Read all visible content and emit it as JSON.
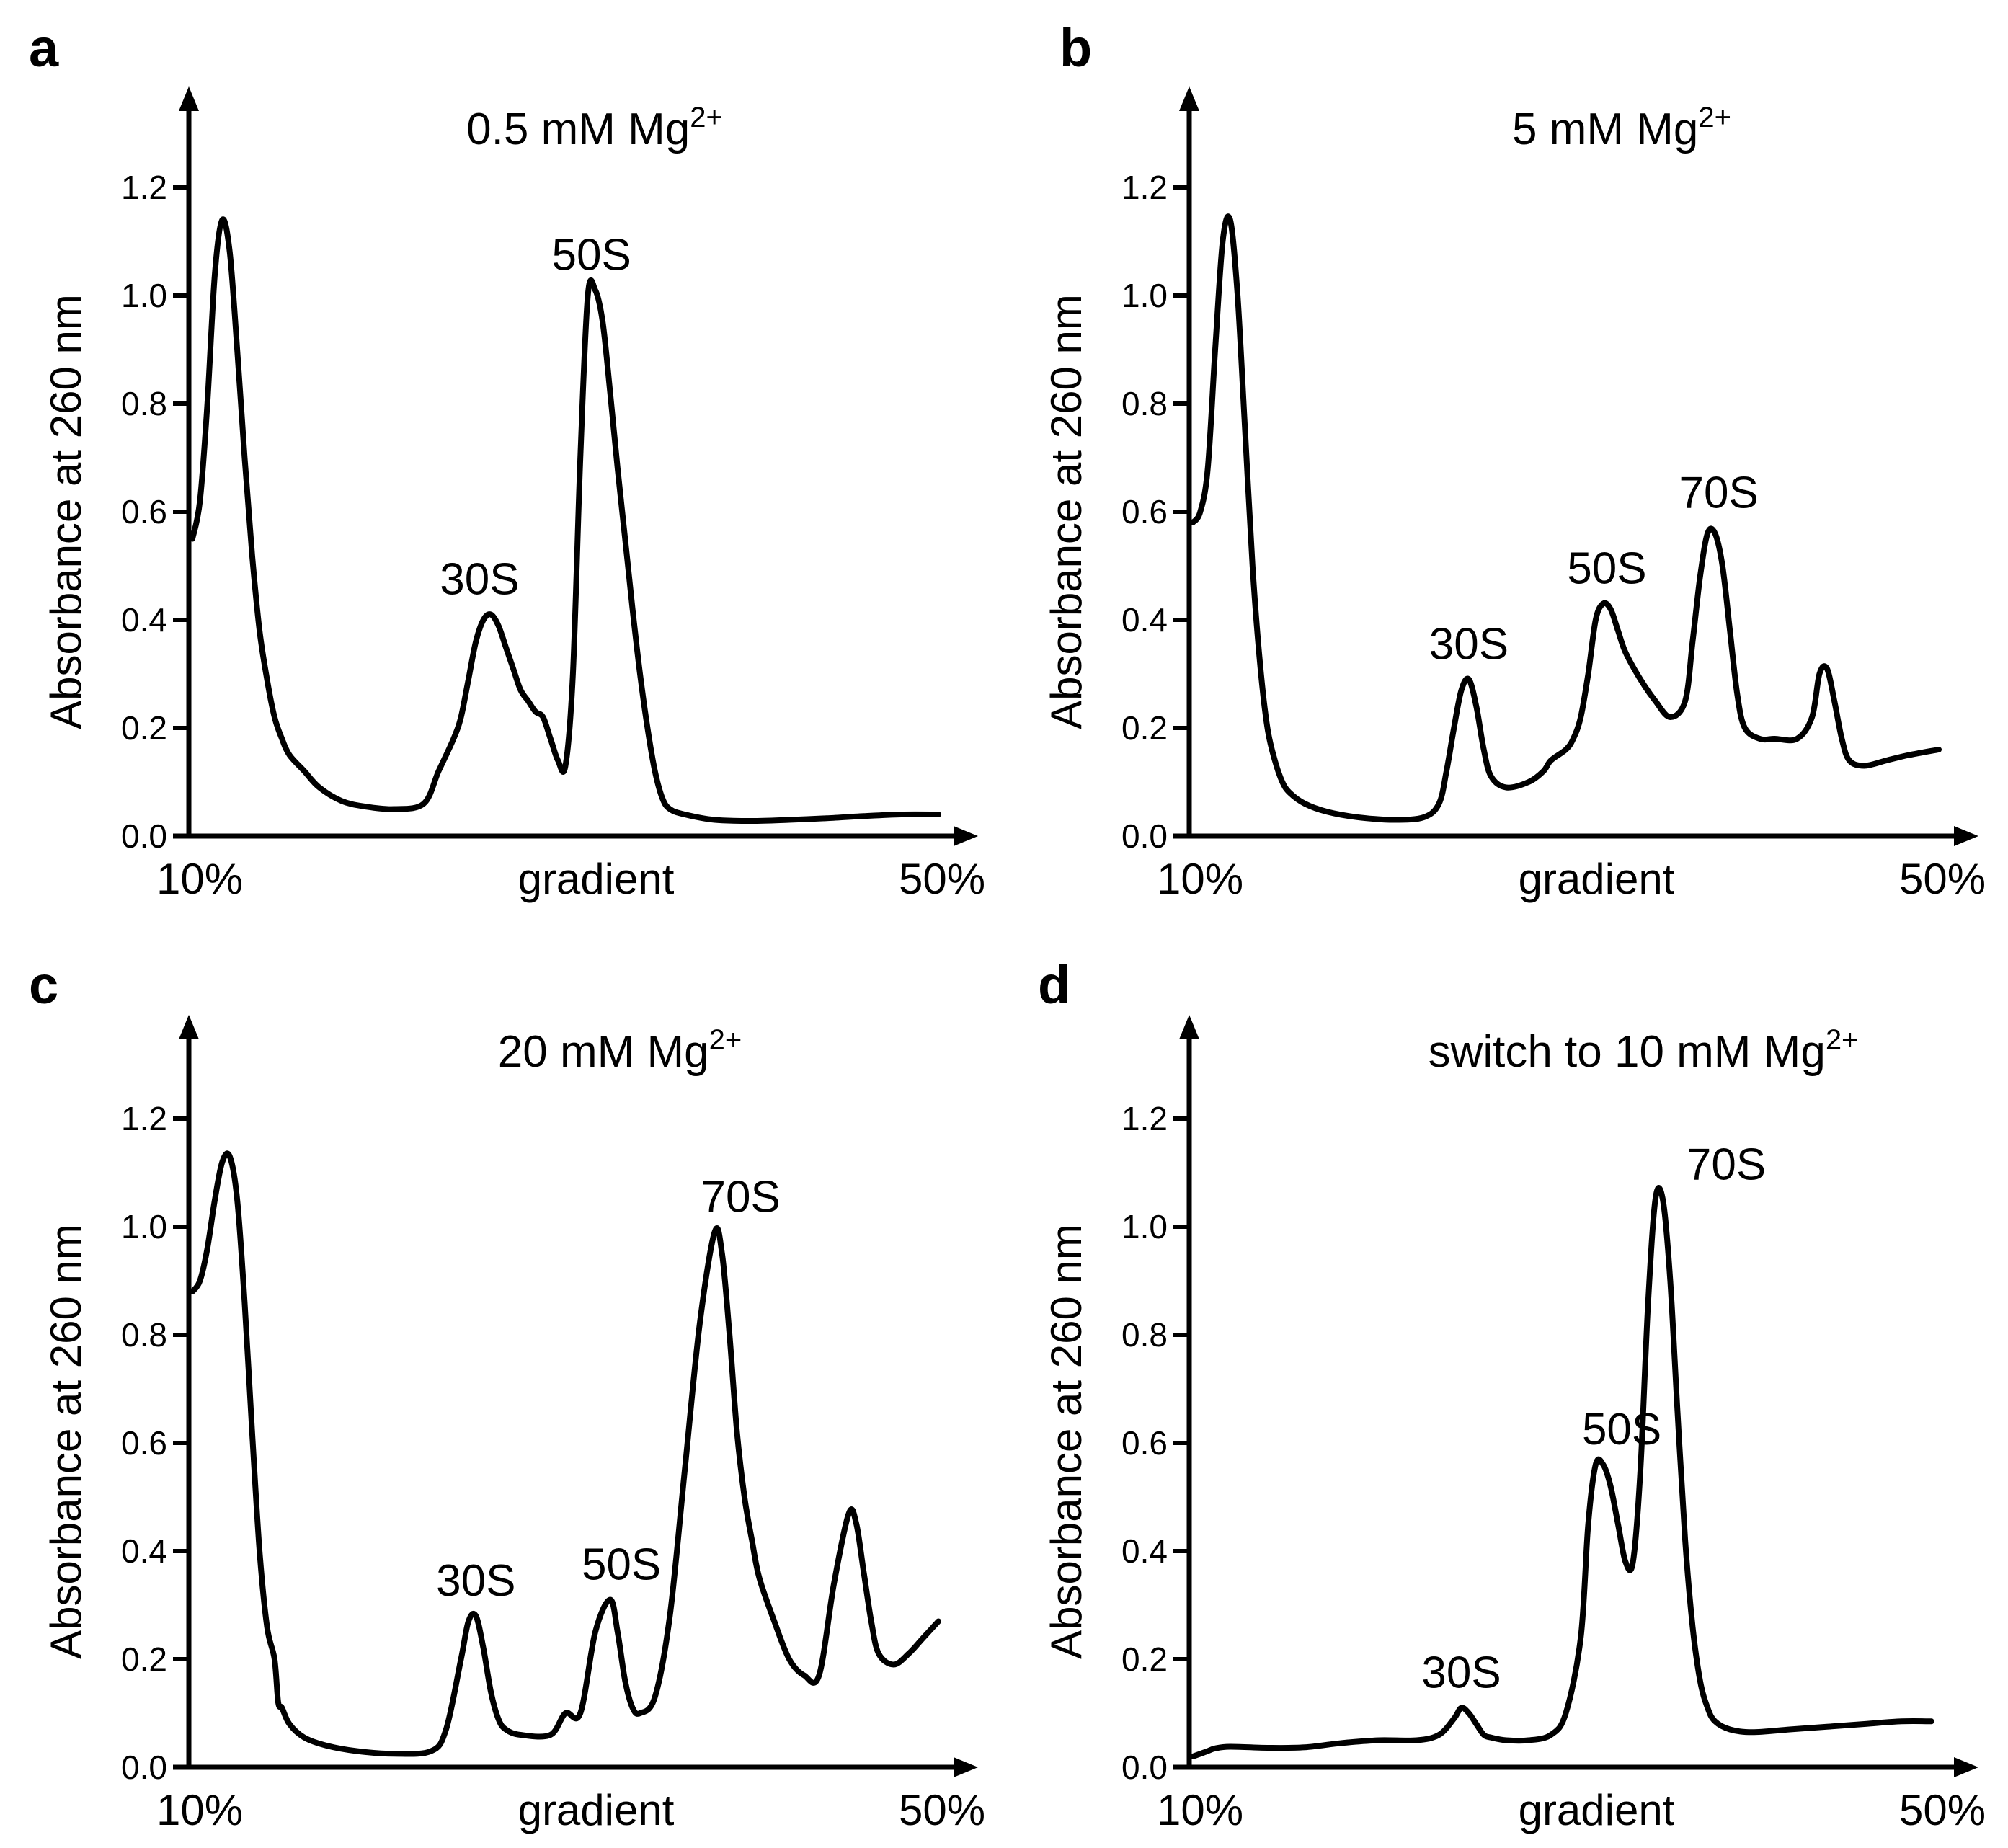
{
  "figure": {
    "colors": {
      "line": "#000000",
      "background": "#ffffff"
    }
  },
  "chart_data": [
    {
      "panel": "a",
      "type": "line",
      "title": "0.5 mM Mg",
      "title_superscript": "2+",
      "xlabel": "gradient",
      "ylabel": "Absorbance at 260 nm",
      "x_start_label": "10%",
      "x_end_label": "50%",
      "xlim": [
        0,
        1
      ],
      "ylim": [
        0,
        1.35
      ],
      "yticks": [
        0.0,
        0.2,
        0.4,
        0.6,
        0.8,
        1.0,
        1.2
      ],
      "ytick_labels": [
        "0.0",
        "0.2",
        "0.4",
        "0.6",
        "0.8",
        "1.0",
        "1.2"
      ],
      "grid": false,
      "series": [
        {
          "name": "profile",
          "x": [
            0.0,
            0.01,
            0.02,
            0.03,
            0.04,
            0.05,
            0.06,
            0.07,
            0.08,
            0.09,
            0.1,
            0.11,
            0.12,
            0.13,
            0.15,
            0.17,
            0.2,
            0.23,
            0.27,
            0.31,
            0.33,
            0.35,
            0.36,
            0.37,
            0.38,
            0.39,
            0.4,
            0.41,
            0.42,
            0.43,
            0.44,
            0.45,
            0.46,
            0.47,
            0.48,
            0.49,
            0.5,
            0.51,
            0.52,
            0.53,
            0.54,
            0.55,
            0.56,
            0.57,
            0.58,
            0.59,
            0.6,
            0.61,
            0.62,
            0.63,
            0.64,
            0.66,
            0.7,
            0.75,
            0.8,
            0.85,
            0.9,
            0.95,
            1.0
          ],
          "y": [
            0.55,
            0.62,
            0.8,
            1.04,
            1.14,
            1.08,
            0.9,
            0.7,
            0.52,
            0.38,
            0.29,
            0.22,
            0.18,
            0.15,
            0.12,
            0.09,
            0.065,
            0.055,
            0.05,
            0.06,
            0.12,
            0.18,
            0.22,
            0.29,
            0.36,
            0.4,
            0.41,
            0.39,
            0.35,
            0.31,
            0.27,
            0.25,
            0.23,
            0.22,
            0.18,
            0.14,
            0.13,
            0.3,
            0.7,
            1.0,
            1.01,
            0.95,
            0.82,
            0.68,
            0.55,
            0.42,
            0.3,
            0.2,
            0.12,
            0.07,
            0.05,
            0.04,
            0.03,
            0.028,
            0.03,
            0.033,
            0.037,
            0.04,
            0.04
          ]
        }
      ],
      "annotations": [
        {
          "label": "30S",
          "x": 0.385,
          "y": 0.41
        },
        {
          "label": "50S",
          "x": 0.535,
          "y": 1.01
        }
      ]
    },
    {
      "panel": "b",
      "type": "line",
      "title": "5 mM Mg",
      "title_superscript": "2+",
      "xlabel": "gradient",
      "ylabel": "Absorbance at 260 nm",
      "x_start_label": "10%",
      "x_end_label": "50%",
      "xlim": [
        0,
        1
      ],
      "ylim": [
        0,
        1.35
      ],
      "yticks": [
        0.0,
        0.2,
        0.4,
        0.6,
        0.8,
        1.0,
        1.2
      ],
      "ytick_labels": [
        "0.0",
        "0.2",
        "0.4",
        "0.6",
        "0.8",
        "1.0",
        "1.2"
      ],
      "grid": false,
      "series": [
        {
          "name": "profile",
          "x": [
            0.0,
            0.01,
            0.02,
            0.03,
            0.04,
            0.05,
            0.06,
            0.07,
            0.08,
            0.09,
            0.1,
            0.11,
            0.12,
            0.13,
            0.15,
            0.18,
            0.22,
            0.27,
            0.31,
            0.33,
            0.34,
            0.35,
            0.36,
            0.37,
            0.38,
            0.39,
            0.4,
            0.42,
            0.45,
            0.47,
            0.48,
            0.5,
            0.51,
            0.52,
            0.53,
            0.54,
            0.55,
            0.56,
            0.57,
            0.58,
            0.6,
            0.62,
            0.64,
            0.66,
            0.67,
            0.68,
            0.69,
            0.7,
            0.71,
            0.72,
            0.73,
            0.74,
            0.76,
            0.78,
            0.81,
            0.83,
            0.84,
            0.85,
            0.86,
            0.87,
            0.88,
            0.9,
            0.93,
            0.96,
            1.0
          ],
          "y": [
            0.58,
            0.6,
            0.68,
            0.9,
            1.1,
            1.14,
            1.0,
            0.75,
            0.5,
            0.32,
            0.2,
            0.14,
            0.1,
            0.08,
            0.06,
            0.045,
            0.035,
            0.03,
            0.035,
            0.06,
            0.12,
            0.2,
            0.27,
            0.29,
            0.24,
            0.16,
            0.11,
            0.09,
            0.1,
            0.12,
            0.14,
            0.16,
            0.18,
            0.22,
            0.3,
            0.4,
            0.43,
            0.42,
            0.38,
            0.34,
            0.29,
            0.25,
            0.22,
            0.25,
            0.36,
            0.48,
            0.56,
            0.56,
            0.5,
            0.38,
            0.26,
            0.2,
            0.18,
            0.18,
            0.18,
            0.22,
            0.3,
            0.31,
            0.25,
            0.18,
            0.14,
            0.13,
            0.14,
            0.15,
            0.16
          ]
        }
      ],
      "annotations": [
        {
          "label": "30S",
          "x": 0.37,
          "y": 0.29
        },
        {
          "label": "50S",
          "x": 0.555,
          "y": 0.43
        },
        {
          "label": "70S",
          "x": 0.705,
          "y": 0.57
        }
      ]
    },
    {
      "panel": "c",
      "type": "line",
      "title": "20 mM Mg",
      "title_superscript": "2+",
      "xlabel": "gradient",
      "ylabel": "Absorbance at  260 nm",
      "x_start_label": "10%",
      "x_end_label": "50%",
      "xlim": [
        0,
        1
      ],
      "ylim": [
        0,
        1.35
      ],
      "yticks": [
        0.0,
        0.2,
        0.4,
        0.6,
        0.8,
        1.0,
        1.2
      ],
      "ytick_labels": [
        "0.0",
        "0.2",
        "0.4",
        "0.6",
        "0.8",
        "1.0",
        "1.2"
      ],
      "grid": false,
      "series": [
        {
          "name": "profile",
          "x": [
            0.0,
            0.01,
            0.02,
            0.03,
            0.04,
            0.05,
            0.06,
            0.07,
            0.08,
            0.09,
            0.1,
            0.11,
            0.115,
            0.12,
            0.13,
            0.15,
            0.18,
            0.22,
            0.27,
            0.32,
            0.34,
            0.36,
            0.37,
            0.38,
            0.39,
            0.4,
            0.41,
            0.42,
            0.44,
            0.48,
            0.5,
            0.52,
            0.54,
            0.56,
            0.57,
            0.58,
            0.59,
            0.6,
            0.62,
            0.64,
            0.66,
            0.68,
            0.7,
            0.71,
            0.72,
            0.73,
            0.74,
            0.75,
            0.76,
            0.78,
            0.8,
            0.82,
            0.84,
            0.86,
            0.88,
            0.89,
            0.9,
            0.91,
            0.92,
            0.94,
            0.96,
            0.98,
            1.0
          ],
          "y": [
            0.88,
            0.9,
            0.96,
            1.05,
            1.12,
            1.13,
            1.05,
            0.86,
            0.62,
            0.4,
            0.26,
            0.2,
            0.12,
            0.11,
            0.08,
            0.055,
            0.04,
            0.03,
            0.025,
            0.03,
            0.07,
            0.2,
            0.27,
            0.28,
            0.22,
            0.14,
            0.09,
            0.07,
            0.06,
            0.06,
            0.1,
            0.1,
            0.25,
            0.31,
            0.25,
            0.16,
            0.11,
            0.1,
            0.13,
            0.28,
            0.55,
            0.82,
            0.99,
            0.95,
            0.8,
            0.62,
            0.5,
            0.42,
            0.35,
            0.27,
            0.2,
            0.17,
            0.17,
            0.34,
            0.47,
            0.45,
            0.36,
            0.27,
            0.21,
            0.19,
            0.21,
            0.24,
            0.27
          ]
        }
      ],
      "annotations": [
        {
          "label": "30S",
          "x": 0.38,
          "y": 0.28
        },
        {
          "label": "50S",
          "x": 0.575,
          "y": 0.31
        },
        {
          "label": "70S",
          "x": 0.735,
          "y": 0.99
        }
      ]
    },
    {
      "panel": "d",
      "type": "line",
      "title": "switch to 10 mM Mg",
      "title_superscript": "2+",
      "xlabel": "gradient",
      "ylabel": "Absorbance at 260 nm",
      "x_start_label": "10%",
      "x_end_label": "50%",
      "xlim": [
        0,
        1
      ],
      "ylim": [
        0,
        1.35
      ],
      "yticks": [
        0.0,
        0.2,
        0.4,
        0.6,
        0.8,
        1.0,
        1.2
      ],
      "ytick_labels": [
        "0.0",
        "0.2",
        "0.4",
        "0.6",
        "0.8",
        "1.0",
        "1.2"
      ],
      "grid": false,
      "series": [
        {
          "name": "profile",
          "x": [
            0.0,
            0.01,
            0.02,
            0.03,
            0.05,
            0.1,
            0.15,
            0.2,
            0.25,
            0.3,
            0.33,
            0.35,
            0.36,
            0.37,
            0.38,
            0.39,
            0.4,
            0.42,
            0.45,
            0.48,
            0.5,
            0.52,
            0.53,
            0.54,
            0.55,
            0.56,
            0.57,
            0.58,
            0.59,
            0.6,
            0.61,
            0.62,
            0.63,
            0.64,
            0.65,
            0.66,
            0.67,
            0.68,
            0.69,
            0.7,
            0.72,
            0.75,
            0.8,
            0.85,
            0.9,
            0.95,
            0.99
          ],
          "y": [
            0.02,
            0.025,
            0.03,
            0.035,
            0.038,
            0.036,
            0.037,
            0.045,
            0.05,
            0.05,
            0.06,
            0.09,
            0.11,
            0.1,
            0.08,
            0.06,
            0.055,
            0.05,
            0.05,
            0.06,
            0.1,
            0.24,
            0.45,
            0.56,
            0.56,
            0.52,
            0.45,
            0.38,
            0.38,
            0.55,
            0.85,
            1.05,
            1.05,
            0.9,
            0.65,
            0.42,
            0.26,
            0.16,
            0.11,
            0.085,
            0.07,
            0.065,
            0.07,
            0.075,
            0.08,
            0.085,
            0.085
          ]
        }
      ],
      "annotations": [
        {
          "label": "30S",
          "x": 0.36,
          "y": 0.11
        },
        {
          "label": "50S",
          "x": 0.575,
          "y": 0.56
        },
        {
          "label": "70S",
          "x": 0.715,
          "y": 1.05
        }
      ]
    }
  ]
}
